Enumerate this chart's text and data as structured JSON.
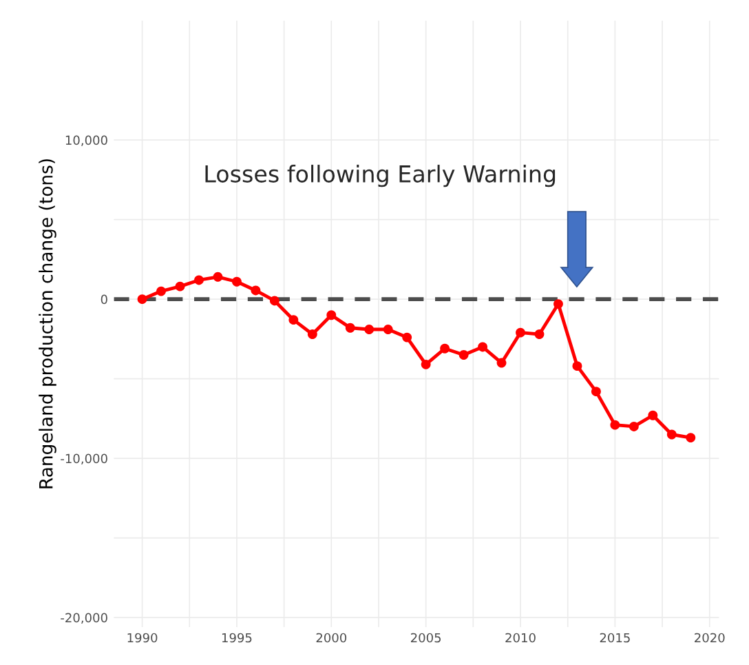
{
  "chart_data": {
    "type": "line",
    "ylabel": "Rangeland production change (tons)",
    "x": [
      1990,
      1991,
      1992,
      1993,
      1994,
      1995,
      1996,
      1997,
      1998,
      1999,
      2000,
      2001,
      2002,
      2003,
      2004,
      2005,
      2006,
      2007,
      2008,
      2009,
      2010,
      2011,
      2012,
      2013,
      2014,
      2015,
      2016,
      2017,
      2018,
      2019
    ],
    "series": [
      {
        "color": "#ff0000",
        "values": [
          0,
          500,
          800,
          1200,
          1400,
          1100,
          550,
          -100,
          -1300,
          -2200,
          -1000,
          -1800,
          -1900,
          -1900,
          -2400,
          -4100,
          -3100,
          -3500,
          -3000,
          -4000,
          -2100,
          -2200,
          -300,
          -4200,
          -5800,
          -7900,
          -8000,
          -7300,
          -8500,
          -8700
        ]
      }
    ],
    "xlim": [
      1988.5,
      2020.5
    ],
    "xticks": [
      1990,
      1995,
      2000,
      2005,
      2010,
      2015,
      2020
    ],
    "ylim": [
      -20600,
      17500
    ],
    "yticks": [
      {
        "value": -20000,
        "label": "-20,000"
      },
      {
        "value": -10000,
        "label": "-10,000"
      },
      0,
      {
        "value": 10000,
        "label": "10,000"
      }
    ],
    "grid": true,
    "marker": "circle",
    "line_style": "solid",
    "ref_lines": [
      {
        "axis": "y",
        "value": 0,
        "color": "#4d4d4d",
        "line_style": "dashed"
      }
    ],
    "annotations": [
      "Losses following Early Warning"
    ]
  }
}
